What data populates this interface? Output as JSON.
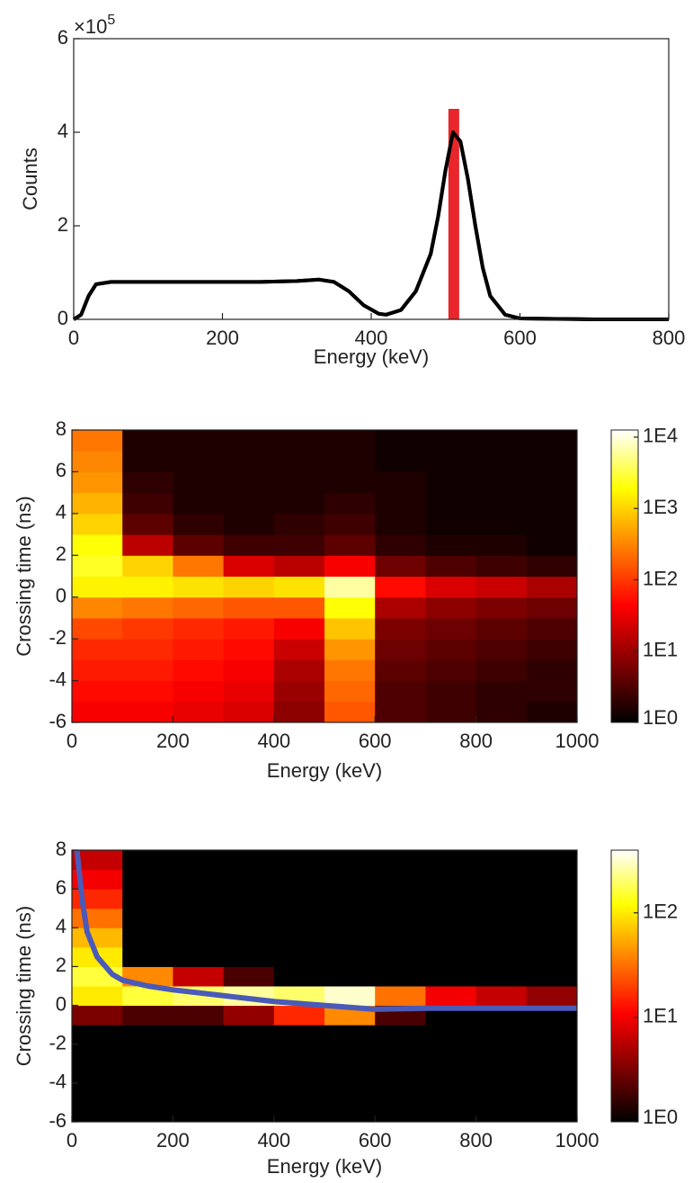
{
  "chart_data": [
    {
      "type": "line",
      "x_label": "Energy (keV)",
      "y_label": "Counts",
      "y_exponent_base": "×10",
      "y_exponent": "5",
      "xlim": [
        0,
        800
      ],
      "xticks": [
        0,
        200,
        400,
        600,
        800
      ],
      "ylim": [
        0,
        6
      ],
      "yticks": [
        0,
        2,
        4,
        6
      ],
      "series": [
        {
          "color": "#000000",
          "x": [
            0,
            10,
            20,
            30,
            50,
            100,
            150,
            200,
            250,
            300,
            330,
            350,
            370,
            390,
            410,
            420,
            440,
            460,
            480,
            490,
            500,
            510,
            520,
            530,
            540,
            550,
            560,
            580,
            600,
            650,
            700,
            800
          ],
          "values": [
            0,
            0.1,
            0.5,
            0.75,
            0.8,
            0.8,
            0.8,
            0.8,
            0.8,
            0.82,
            0.85,
            0.8,
            0.6,
            0.3,
            0.12,
            0.1,
            0.2,
            0.6,
            1.4,
            2.2,
            3.2,
            4.0,
            3.8,
            3.0,
            2.0,
            1.1,
            0.5,
            0.1,
            0.02,
            0.01,
            0,
            0
          ]
        }
      ],
      "marker": {
        "x": 511,
        "height": 4.5,
        "color": "#e8262b"
      }
    },
    {
      "type": "heatmap",
      "x_label": "Energy (keV)",
      "y_label": "Crossing time (ns)",
      "xlim": [
        0,
        1000
      ],
      "xticks": [
        0,
        200,
        400,
        600,
        800,
        1000
      ],
      "ylim": [
        -6,
        8
      ],
      "yticks": [
        -6,
        -4,
        -2,
        0,
        2,
        4,
        6,
        8
      ],
      "x_edges": [
        0,
        100,
        200,
        300,
        400,
        500,
        600,
        700,
        800,
        900,
        1000
      ],
      "y_edges": [
        -6,
        -5,
        -4,
        -3,
        -2,
        -1,
        0,
        1,
        2,
        3,
        4,
        5,
        6,
        7,
        8
      ],
      "z": [
        [
          1.6,
          1.6,
          1.5,
          1.4,
          0.9,
          2.2,
          0.5,
          0.4,
          0.3,
          0.2
        ],
        [
          1.7,
          1.7,
          1.6,
          1.5,
          1.0,
          2.3,
          0.5,
          0.4,
          0.3,
          0.3
        ],
        [
          1.8,
          1.8,
          1.7,
          1.6,
          1.1,
          2.4,
          0.6,
          0.5,
          0.4,
          0.3
        ],
        [
          1.9,
          1.9,
          1.8,
          1.7,
          1.3,
          2.6,
          0.7,
          0.6,
          0.5,
          0.4
        ],
        [
          2.1,
          2.0,
          1.9,
          1.8,
          1.6,
          2.9,
          0.8,
          0.7,
          0.6,
          0.5
        ],
        [
          2.5,
          2.4,
          2.3,
          2.2,
          2.2,
          3.3,
          1.1,
          0.9,
          0.8,
          0.7
        ],
        [
          3.2,
          3.2,
          3.1,
          3.0,
          3.1,
          3.8,
          1.7,
          1.4,
          1.3,
          1.1
        ],
        [
          3.4,
          3.0,
          2.4,
          1.4,
          1.2,
          1.6,
          0.7,
          0.5,
          0.4,
          0.3
        ],
        [
          3.3,
          1.2,
          0.6,
          0.4,
          0.4,
          0.6,
          0.3,
          0.2,
          0.2,
          0.1
        ],
        [
          3.0,
          0.6,
          0.3,
          0.2,
          0.3,
          0.4,
          0.2,
          0.1,
          0.1,
          0.1
        ],
        [
          2.8,
          0.4,
          0.2,
          0.2,
          0.2,
          0.3,
          0.2,
          0.1,
          0.1,
          0.1
        ],
        [
          2.6,
          0.3,
          0.2,
          0.2,
          0.2,
          0.2,
          0.2,
          0.1,
          0.1,
          0.1
        ],
        [
          2.5,
          0.2,
          0.2,
          0.2,
          0.2,
          0.2,
          0.1,
          0.1,
          0.1,
          0.1
        ],
        [
          2.4,
          0.2,
          0.2,
          0.2,
          0.2,
          0.2,
          0.1,
          0.1,
          0.1,
          0.1
        ]
      ],
      "colorbar": {
        "zlim": [
          0,
          4.1
        ],
        "ticks": [
          {
            "value": 0,
            "label": "1E0"
          },
          {
            "value": 1,
            "label": "1E1"
          },
          {
            "value": 2,
            "label": "1E2"
          },
          {
            "value": 3,
            "label": "1E3"
          },
          {
            "value": 4,
            "label": "1E4"
          }
        ]
      }
    },
    {
      "type": "heatmap",
      "x_label": "Energy (keV)",
      "y_label": "Crossing time (ns)",
      "xlim": [
        0,
        1000
      ],
      "xticks": [
        0,
        200,
        400,
        600,
        800,
        1000
      ],
      "ylim": [
        -6,
        8
      ],
      "yticks": [
        -6,
        -4,
        -2,
        0,
        2,
        4,
        6,
        8
      ],
      "x_edges": [
        0,
        100,
        200,
        300,
        400,
        500,
        600,
        700,
        800,
        900,
        1000
      ],
      "y_edges": [
        -6,
        -5,
        -4,
        -3,
        -2,
        -1,
        0,
        1,
        2,
        3,
        4,
        5,
        6,
        7,
        8
      ],
      "z": [
        [
          0,
          0,
          0,
          0,
          0,
          0,
          0,
          0,
          0,
          0
        ],
        [
          0,
          0,
          0,
          0,
          0,
          0,
          0,
          0,
          0,
          0
        ],
        [
          0,
          0,
          0,
          0,
          0,
          0,
          0,
          0,
          0,
          0
        ],
        [
          0,
          0,
          0,
          0,
          0,
          0,
          0,
          0,
          0,
          0
        ],
        [
          0,
          0,
          0,
          0,
          0,
          0,
          0,
          0,
          0,
          0
        ],
        [
          0.5,
          0.3,
          0.3,
          0.6,
          1.2,
          1.6,
          0.3,
          0,
          0,
          0
        ],
        [
          2.0,
          2.2,
          2.3,
          2.4,
          2.3,
          2.5,
          1.5,
          1.0,
          0.8,
          0.6
        ],
        [
          2.2,
          1.6,
          0.8,
          0.3,
          0,
          0,
          0,
          0,
          0,
          0
        ],
        [
          2.0,
          0,
          0,
          0,
          0,
          0,
          0,
          0,
          0,
          0
        ],
        [
          1.8,
          0,
          0,
          0,
          0,
          0,
          0,
          0,
          0,
          0
        ],
        [
          1.5,
          0,
          0,
          0,
          0,
          0,
          0,
          0,
          0,
          0
        ],
        [
          1.2,
          0,
          0,
          0,
          0,
          0,
          0,
          0,
          0,
          0
        ],
        [
          1.0,
          0,
          0,
          0,
          0,
          0,
          0,
          0,
          0,
          0
        ],
        [
          0.8,
          0,
          0,
          0,
          0,
          0,
          0,
          0,
          0,
          0
        ]
      ],
      "series": [
        {
          "color": "#4a5ab8",
          "x": [
            10,
            20,
            30,
            50,
            80,
            100,
            150,
            200,
            300,
            400,
            500,
            550,
            600,
            700,
            800,
            900,
            1000
          ],
          "values": [
            8,
            5.5,
            3.8,
            2.5,
            1.6,
            1.3,
            1.0,
            0.8,
            0.5,
            0.2,
            0,
            -0.1,
            -0.2,
            -0.15,
            -0.15,
            -0.15,
            -0.15
          ]
        }
      ],
      "colorbar": {
        "zlim": [
          0,
          2.6
        ],
        "ticks": [
          {
            "value": 0,
            "label": "1E0"
          },
          {
            "value": 1,
            "label": "1E1"
          },
          {
            "value": 2,
            "label": "1E2"
          }
        ]
      }
    }
  ]
}
